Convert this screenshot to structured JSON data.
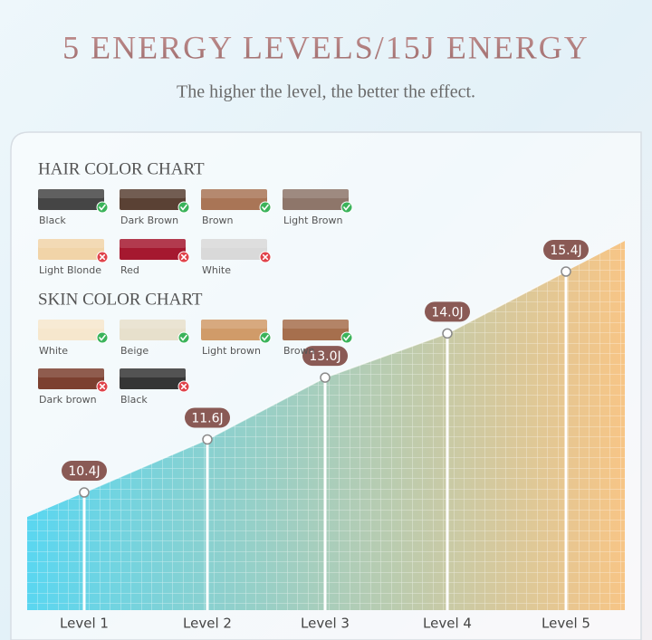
{
  "chart_data": {
    "type": "area",
    "title": "5 ENERGY LEVELS/15J ENERGY",
    "subtitle": "The higher the level, the better the effect.",
    "categories": [
      "Level 1",
      "Level 2",
      "Level 3",
      "Level 4",
      "Level 5"
    ],
    "values": [
      10.4,
      11.6,
      13.0,
      14.0,
      15.4
    ],
    "value_labels": [
      "10.4J",
      "11.6J",
      "13.0J",
      "14.0J",
      "15.4J"
    ],
    "colors": [
      "#5ad6f0",
      "#f7c586"
    ],
    "label_color": "#8a5a55",
    "grid": true
  },
  "hair_chart": {
    "title": "HAIR COLOR CHART",
    "items": [
      {
        "label": "Black",
        "color": "#454545",
        "suitable": true
      },
      {
        "label": "Dark Brown",
        "color": "#5a4134",
        "suitable": true
      },
      {
        "label": "Brown",
        "color": "#a97556",
        "suitable": true
      },
      {
        "label": "Light Brown",
        "color": "#8e766a",
        "suitable": true
      },
      {
        "label": "Light Blonde",
        "color": "#f1d4a8",
        "suitable": false
      },
      {
        "label": "Red",
        "color": "#a5182f",
        "suitable": false
      },
      {
        "label": "White",
        "color": "#d9d9d9",
        "suitable": false
      }
    ]
  },
  "skin_chart": {
    "title": "SKIN COLOR CHART",
    "items": [
      {
        "label": "White",
        "color": "#f6e7cd",
        "suitable": true
      },
      {
        "label": "Beige",
        "color": "#e7e0cc",
        "suitable": true
      },
      {
        "label": "Light brown",
        "color": "#d09b69",
        "suitable": true
      },
      {
        "label": "Brown",
        "color": "#a66f4d",
        "suitable": true
      },
      {
        "label": "Dark brown",
        "color": "#7c4030",
        "suitable": false
      },
      {
        "label": "Black",
        "color": "#353535",
        "suitable": false
      }
    ]
  }
}
